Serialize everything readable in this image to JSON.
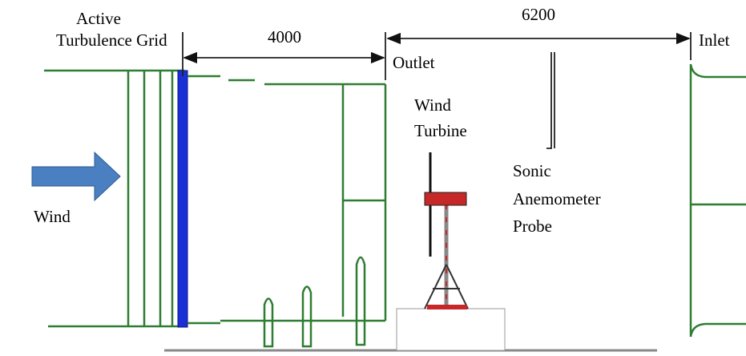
{
  "labels": {
    "grid": [
      "Active",
      "Turbulence Grid"
    ],
    "wind": "Wind",
    "outlet": "Outlet",
    "inlet": "Inlet",
    "turbine": [
      "Wind",
      "Turbine"
    ],
    "probe": [
      "Sonic",
      "Anemometer",
      "Probe"
    ]
  },
  "dimensions": {
    "grid_to_outlet": "4000",
    "outlet_to_inlet": "6200"
  }
}
